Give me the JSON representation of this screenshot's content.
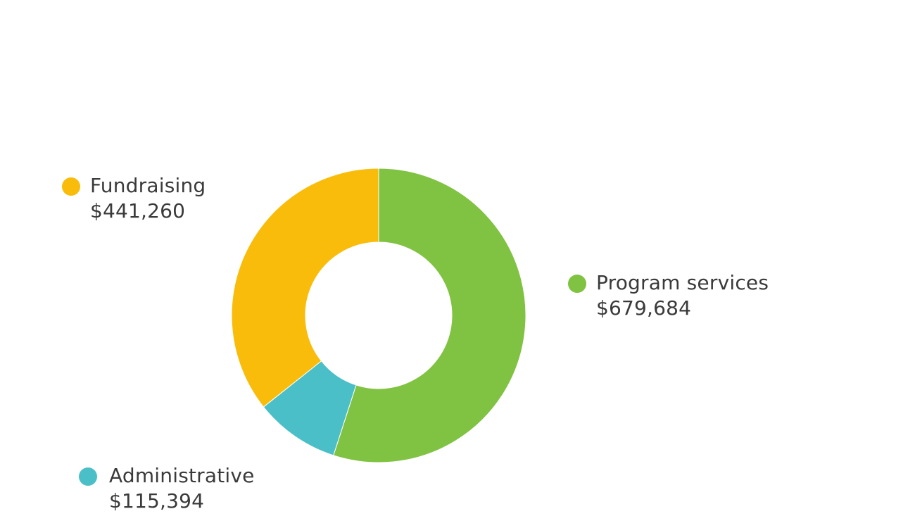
{
  "chart_data": {
    "type": "pie",
    "title": "",
    "donut": true,
    "slices": [
      {
        "label": "Program services",
        "value_text": "$679,684",
        "value": 679684,
        "color": "#80c242"
      },
      {
        "label": "Administrative",
        "value_text": "$115,394",
        "value": 115394,
        "color": "#4bbfc7"
      },
      {
        "label": "Fundraising",
        "value_text": "$441,260",
        "value": 441260,
        "color": "#f9bc0a"
      }
    ],
    "start": "top",
    "direction": "clockwise"
  }
}
